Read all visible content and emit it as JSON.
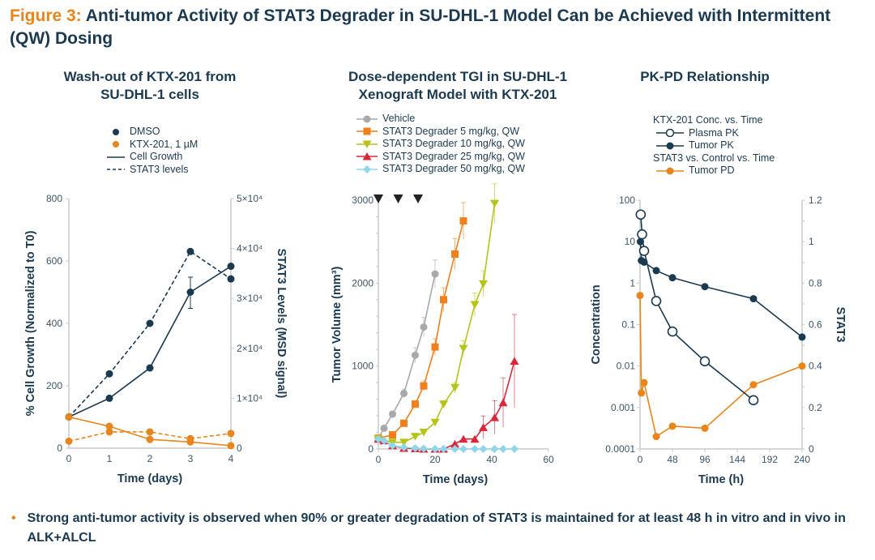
{
  "figure": {
    "label": "Figure 3:",
    "title": "Anti-tumor Activity of STAT3 Degrader in SU-DHL-1 Model Can be Achieved with Intermittent (QW) Dosing"
  },
  "colors": {
    "navy": "#1b3a4f",
    "orange": "#e8851b",
    "gray": "#a7a9ac",
    "orange5": "#f07f1d",
    "green": "#b5c418",
    "red": "#d8283a",
    "cyan": "#8fd6ea"
  },
  "bullet": "Strong anti-tumor activity is observed when 90% or greater degradation of STAT3 is maintained for at least 48 h in vitro and in vivo in ALK+ALCL",
  "chart_data": [
    {
      "type": "line",
      "title": "Wash-out of KTX-201 from SU-DHL-1 cells",
      "xlabel": "Time (days)",
      "ylabel": "% Cell Growth (Normalized to T0)",
      "y2label": "STAT3 Levels (MSD signal)",
      "xlim": [
        0,
        4
      ],
      "ylim": [
        0,
        800
      ],
      "y2lim": [
        0,
        50000
      ],
      "xticks": [
        "0",
        "1",
        "2",
        "3",
        "4"
      ],
      "yticks": [
        "0",
        "200",
        "400",
        "600",
        "800"
      ],
      "y2ticks": [
        "0",
        "1×10⁴",
        "2×10⁴",
        "3×10⁴",
        "4×10⁴",
        "5×10⁴"
      ],
      "legend": [
        "DMSO",
        "KTX-201, 1 µM",
        "Cell Growth",
        "STAT3 levels"
      ],
      "x": [
        0,
        1,
        2,
        3,
        4
      ],
      "series": [
        {
          "name": "DMSO Cell Growth",
          "axis": "y",
          "values": [
            100,
            160,
            257,
            500,
            583
          ],
          "color": "#1b3a4f",
          "dash": false
        },
        {
          "name": "DMSO STAT3 levels",
          "axis": "y2",
          "values": [
            6250,
            14900,
            25000,
            39400,
            33900
          ],
          "color": "#1b3a4f",
          "dash": true
        },
        {
          "name": "KTX-201 Cell Growth",
          "axis": "y",
          "values": [
            100,
            70,
            28,
            20,
            8
          ],
          "color": "#e8851b",
          "dash": false
        },
        {
          "name": "KTX-201 STAT3 levels",
          "axis": "y2",
          "values": [
            1400,
            3250,
            3250,
            1900,
            2950
          ],
          "color": "#e8851b",
          "dash": true
        }
      ]
    },
    {
      "type": "line",
      "title": "Dose-dependent TGI in SU-DHL-1 Xenograft Model with KTX-201",
      "xlabel": "Time (days)",
      "ylabel": "Tumor Volume (mm³)",
      "xlim": [
        0,
        60
      ],
      "ylim": [
        0,
        3000
      ],
      "xticks": [
        "0",
        "20",
        "40",
        "60"
      ],
      "yticks": [
        "0",
        "1000",
        "2000",
        "3000"
      ],
      "dosing_days": [
        0,
        7,
        14
      ],
      "series": [
        {
          "name": "Vehicle",
          "marker": "circle",
          "color": "#a7a9ac",
          "x": [
            0,
            2,
            5,
            9,
            13,
            16,
            20
          ],
          "values": [
            130,
            250,
            420,
            670,
            1130,
            1470,
            2110
          ]
        },
        {
          "name": "STAT3 Degrader 5 mg/kg, QW",
          "marker": "square",
          "color": "#f07f1d",
          "x": [
            0,
            5,
            9,
            13,
            16,
            20,
            23,
            27,
            30
          ],
          "values": [
            130,
            170,
            310,
            540,
            760,
            1230,
            1800,
            2350,
            2750
          ]
        },
        {
          "name": "STAT3 Degrader  10 mg/kg, QW",
          "marker": "tri-down",
          "color": "#b5c418",
          "x": [
            0,
            5,
            9,
            13,
            16,
            20,
            23,
            27,
            30,
            34,
            37,
            41
          ],
          "values": [
            120,
            80,
            80,
            150,
            200,
            320,
            540,
            740,
            1210,
            1740,
            1990,
            2960
          ]
        },
        {
          "name": "STAT3 Degrader  25 mg/kg, QW",
          "marker": "tri-up",
          "color": "#d8283a",
          "x": [
            0,
            2,
            5,
            9,
            13,
            16,
            20,
            23,
            27,
            30,
            34,
            37,
            41,
            44,
            48
          ],
          "values": [
            120,
            100,
            40,
            10,
            5,
            0,
            0,
            0,
            60,
            120,
            120,
            260,
            380,
            560,
            1060
          ]
        },
        {
          "name": "STAT3 Degrader  50 mg/kg, QW",
          "marker": "diamond",
          "color": "#8fd6ea",
          "x": [
            0,
            2,
            5,
            9,
            13,
            16,
            20,
            23,
            27,
            30,
            34,
            37,
            41,
            44,
            48
          ],
          "values": [
            120,
            100,
            40,
            20,
            10,
            5,
            0,
            0,
            0,
            0,
            0,
            0,
            0,
            0,
            0
          ]
        }
      ]
    },
    {
      "type": "line",
      "title": "PK-PD Relationship",
      "xlabel": "Time (h)",
      "ylabel": "Concentration",
      "y2label": "STAT3",
      "xlim": [
        0,
        240
      ],
      "ylim": [
        0.0001,
        100
      ],
      "yscale": "log",
      "y2lim": [
        0,
        1.2
      ],
      "xticks": [
        "0",
        "48",
        "96",
        "144",
        "192",
        "240"
      ],
      "yticks": [
        "0.0001",
        "0.001",
        "0.01",
        "0.1",
        "1",
        "10",
        "100"
      ],
      "y2ticks": [
        "0",
        "0.2",
        "0.4",
        "0.6",
        "0.8",
        "1",
        "1.2"
      ],
      "legend_headers": [
        "KTX-201 Conc. vs. Time",
        "STAT3 vs. Control vs. Time"
      ],
      "series": [
        {
          "name": "Plasma PK",
          "axis": "y",
          "marker": "open-circle",
          "color": "#1b3a4f",
          "x": [
            1,
            3,
            6,
            24,
            48,
            96,
            168
          ],
          "values": [
            45,
            15,
            6,
            0.37,
            0.068,
            0.013,
            0.0015
          ]
        },
        {
          "name": "Tumor PK",
          "axis": "y",
          "marker": "circle",
          "color": "#1b3a4f",
          "x": [
            0.5,
            2,
            6,
            24,
            48,
            96,
            168,
            240
          ],
          "values": [
            10,
            3.5,
            3.2,
            2,
            1.35,
            0.82,
            0.42,
            0.05
          ]
        },
        {
          "name": "Tumor PD",
          "axis": "y2",
          "marker": "circle",
          "color": "#e8851b",
          "x": [
            0,
            2,
            6,
            24,
            48,
            96,
            168,
            240
          ],
          "values": [
            0.74,
            0.27,
            0.32,
            0.06,
            0.11,
            0.1,
            0.31,
            0.4
          ]
        }
      ]
    }
  ]
}
